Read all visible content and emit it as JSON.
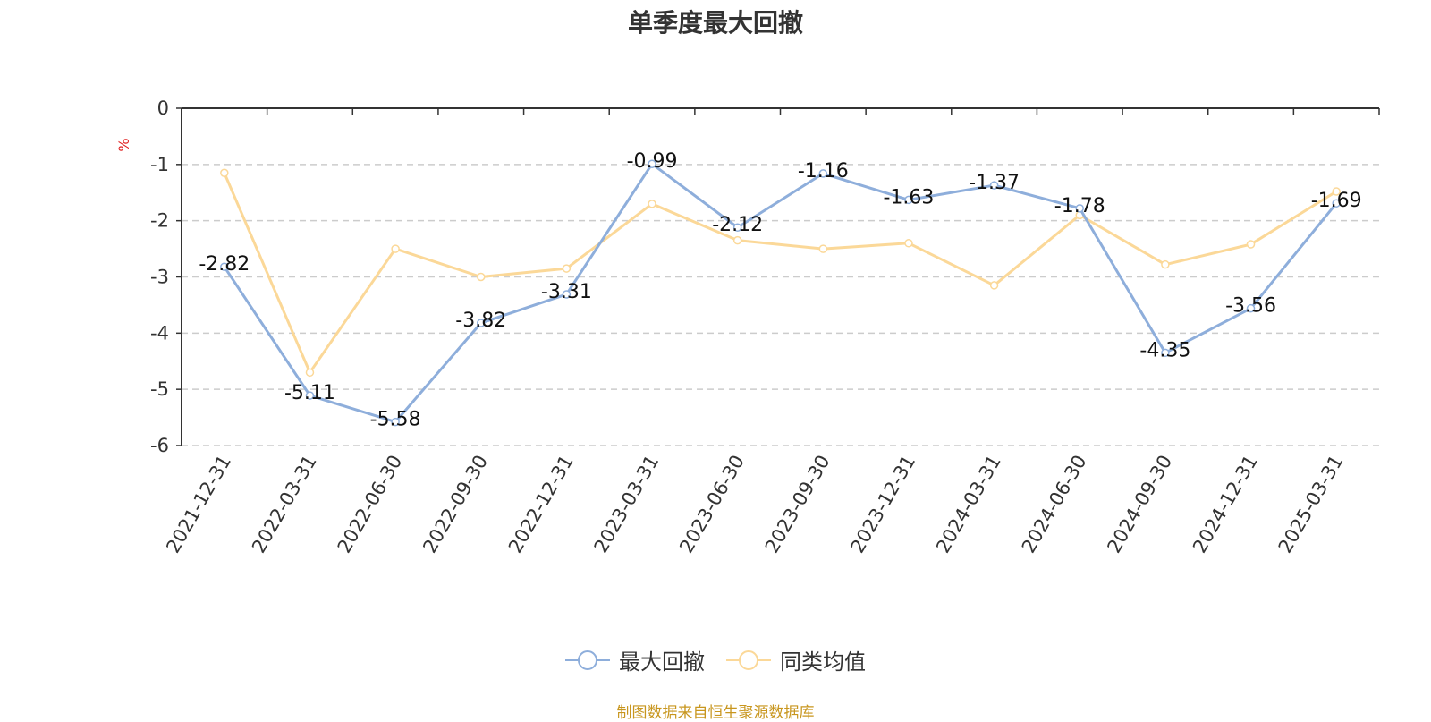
{
  "title": "单季度最大回撤",
  "source": "制图数据来自恒生聚源数据库",
  "chart_data": {
    "type": "line",
    "title": "单季度最大回撤",
    "ylabel": "%",
    "ylim": [
      -6,
      0
    ],
    "yticks": [
      0,
      -1,
      -2,
      -3,
      -4,
      -5,
      -6
    ],
    "grid": true,
    "legend_position": "bottom-center",
    "categories": [
      "2021-12-31",
      "2022-03-31",
      "2022-06-30",
      "2022-09-30",
      "2022-12-31",
      "2023-03-31",
      "2023-06-30",
      "2023-09-30",
      "2023-12-31",
      "2024-03-31",
      "2024-06-30",
      "2024-09-30",
      "2024-12-31",
      "2025-03-31"
    ],
    "series": [
      {
        "name": "最大回撤",
        "color": "#8eaedb",
        "show_labels": true,
        "values": [
          -2.82,
          -5.11,
          -5.58,
          -3.82,
          -3.31,
          -0.99,
          -2.12,
          -1.16,
          -1.63,
          -1.37,
          -1.78,
          -4.35,
          -3.56,
          -1.69
        ]
      },
      {
        "name": "同类均值",
        "color": "#fbd898",
        "show_labels": false,
        "values": [
          -1.15,
          -4.7,
          -2.5,
          -3.0,
          -2.85,
          -1.7,
          -2.35,
          -2.5,
          -2.4,
          -3.15,
          -1.9,
          -2.78,
          -2.42,
          -1.48
        ]
      }
    ]
  }
}
